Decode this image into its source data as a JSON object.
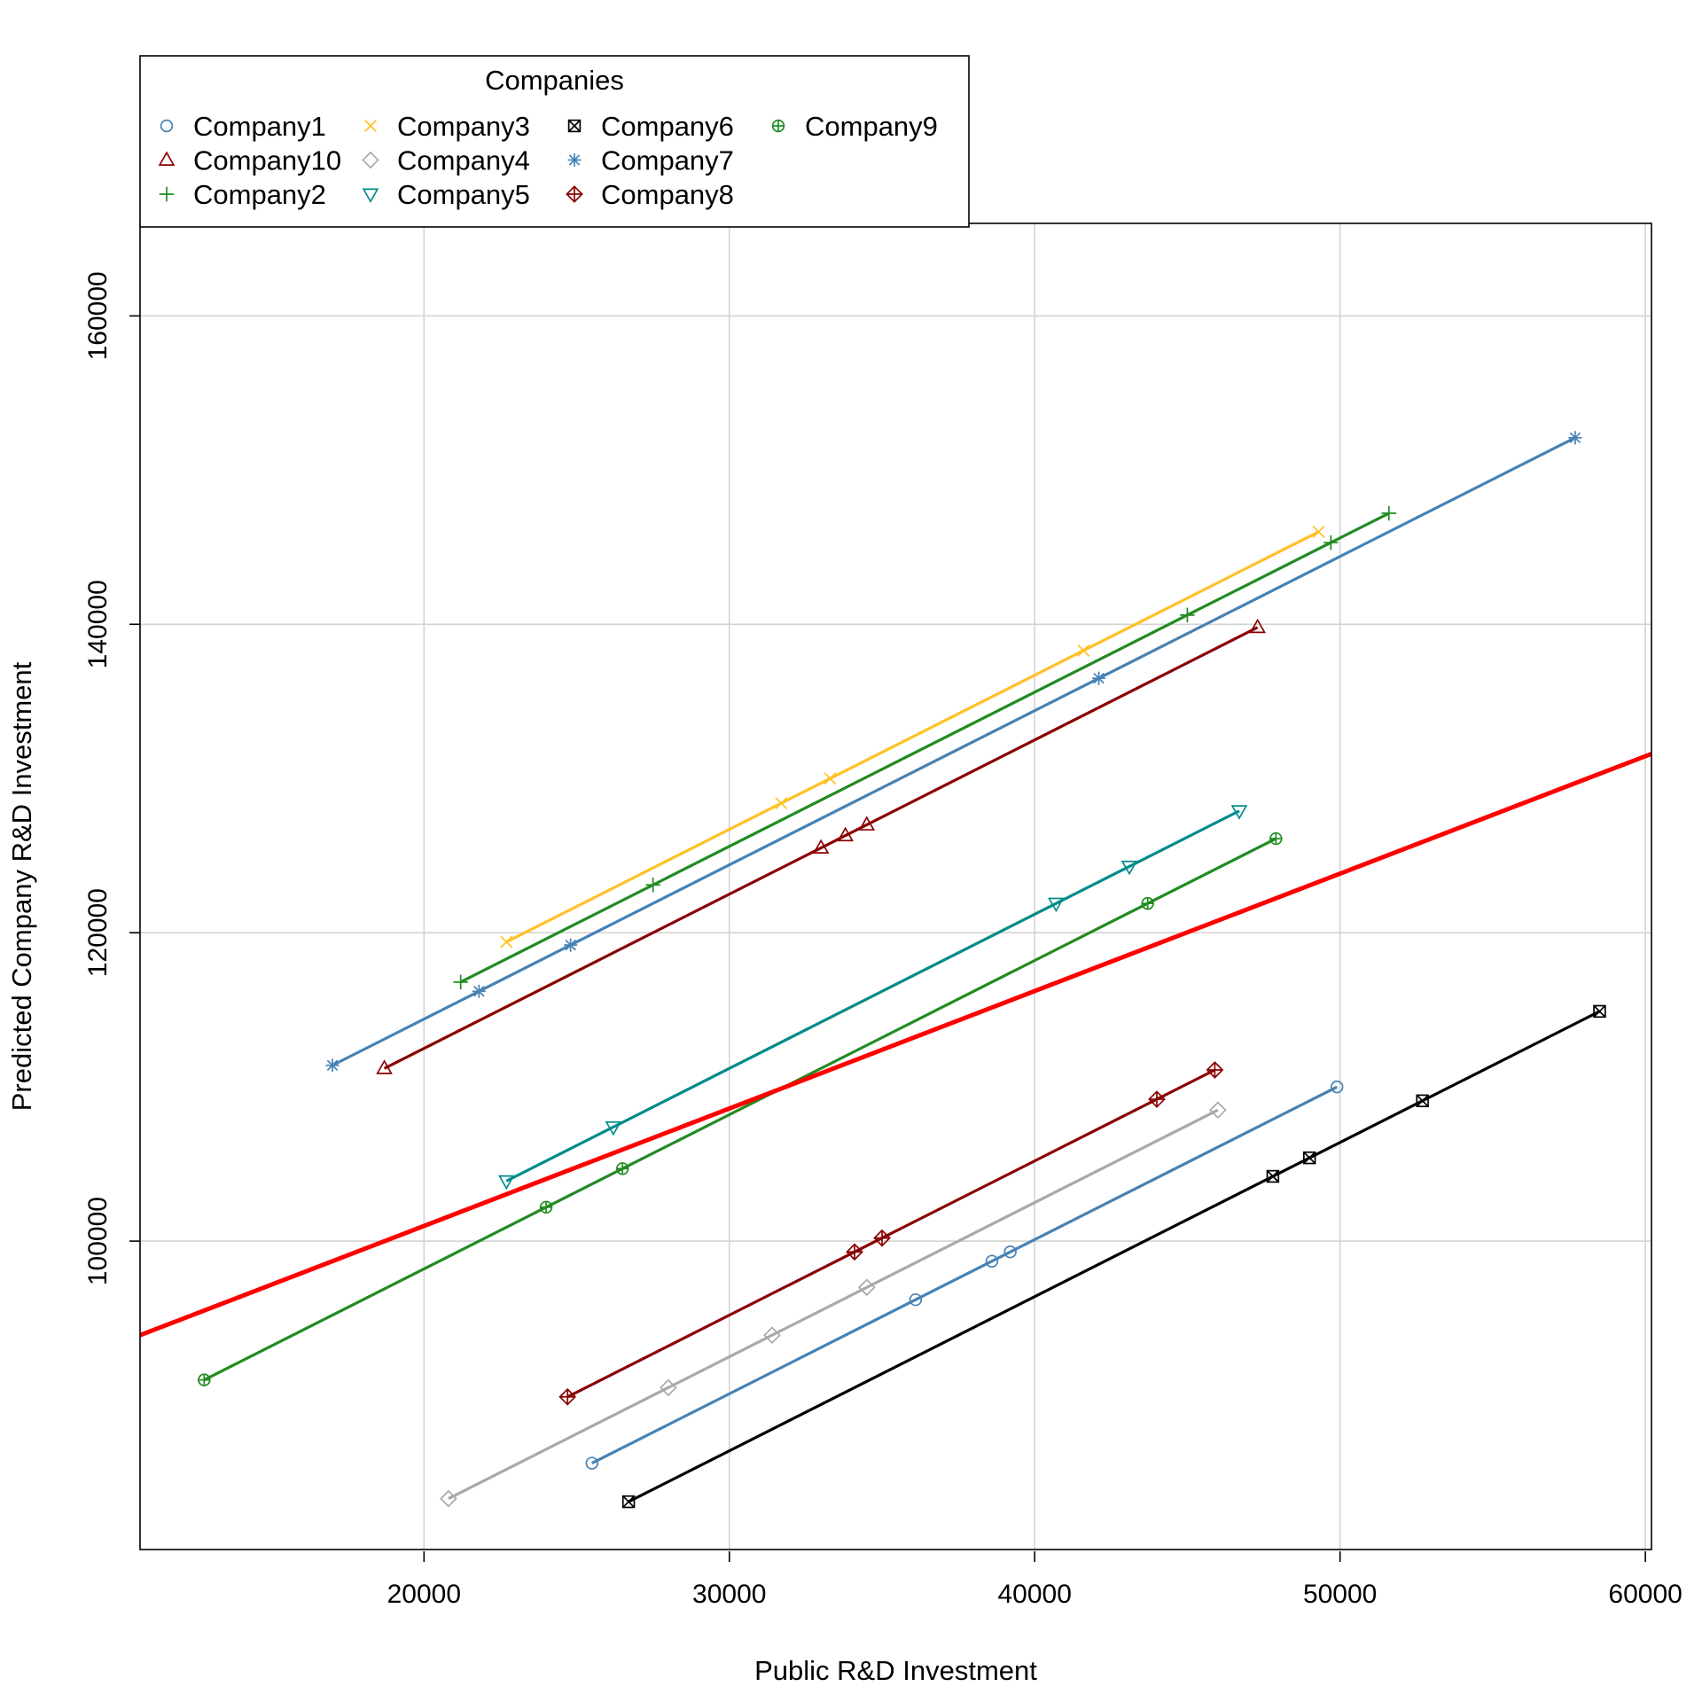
{
  "chart_data": {
    "type": "line",
    "title": "",
    "xlabel": "Public R&D Investment",
    "ylabel": "Predicted Company R&D Investment",
    "xlim": [
      10700,
      60200
    ],
    "ylim": [
      80000,
      166000
    ],
    "xticks": [
      20000,
      30000,
      40000,
      50000,
      60000
    ],
    "yticks": [
      100000,
      120000,
      140000,
      160000
    ],
    "xtick_labels": [
      "20000",
      "30000",
      "40000",
      "50000",
      "60000"
    ],
    "ytick_labels": [
      "100000",
      "120000",
      "140000",
      "160000"
    ],
    "grid": true,
    "legend": {
      "title": "Companies",
      "placement": "top-left",
      "columns": 4
    },
    "series": [
      {
        "name": "Company1",
        "color": "#4682B4",
        "marker": "circle",
        "x": [
          25500,
          36100,
          38600,
          39200,
          49900
        ],
        "y": [
          85600,
          96200,
          98700,
          99300,
          110000
        ]
      },
      {
        "name": "Company10",
        "color": "#8B0000",
        "marker": "triangle-up",
        "x": [
          18700,
          33000,
          33800,
          34500,
          47300
        ],
        "y": [
          111200,
          125500,
          126300,
          127000,
          139800
        ]
      },
      {
        "name": "Company2",
        "color": "#228B22",
        "marker": "plus",
        "x": [
          21200,
          27500,
          45000,
          49700,
          51600
        ],
        "y": [
          116800,
          123100,
          140600,
          145300,
          147200
        ]
      },
      {
        "name": "Company3",
        "color": "#FFC125",
        "marker": "cross",
        "x": [
          22700,
          31700,
          33300,
          41600,
          49300
        ],
        "y": [
          119400,
          128400,
          130000,
          138300,
          146000
        ]
      },
      {
        "name": "Company4",
        "color": "#A9A9A9",
        "marker": "diamond",
        "x": [
          20800,
          28000,
          31400,
          34500,
          46000
        ],
        "y": [
          83300,
          90500,
          93900,
          97000,
          108500
        ]
      },
      {
        "name": "Company5",
        "color": "#008B8B",
        "marker": "triangle-down",
        "x": [
          22700,
          26200,
          40700,
          43100,
          46700
        ],
        "y": [
          103900,
          107400,
          121900,
          124300,
          127900
        ]
      },
      {
        "name": "Company6",
        "color": "#000000",
        "marker": "square-x",
        "x": [
          26700,
          47800,
          49000,
          52700,
          58500
        ],
        "y": [
          83100,
          104200,
          105400,
          109100,
          114900
        ]
      },
      {
        "name": "Company7",
        "color": "#4682B4",
        "marker": "asterisk",
        "x": [
          17000,
          21800,
          24800,
          42100,
          57700
        ],
        "y": [
          111400,
          116200,
          119200,
          136500,
          152100
        ]
      },
      {
        "name": "Company8",
        "color": "#8B0000",
        "marker": "diamond-plus",
        "x": [
          24700,
          34100,
          35000,
          44000,
          45900
        ],
        "y": [
          89900,
          99300,
          100200,
          109200,
          111100
        ]
      },
      {
        "name": "Company9",
        "color": "#228B22",
        "marker": "circle-plus",
        "x": [
          12800,
          24000,
          26500,
          43700,
          47900
        ],
        "y": [
          91000,
          102200,
          104700,
          121900,
          126100
        ]
      }
    ],
    "reference_line": {
      "color": "#FF0000",
      "x": [
        10700,
        60200
      ],
      "y": [
        93900,
        131600
      ]
    }
  }
}
